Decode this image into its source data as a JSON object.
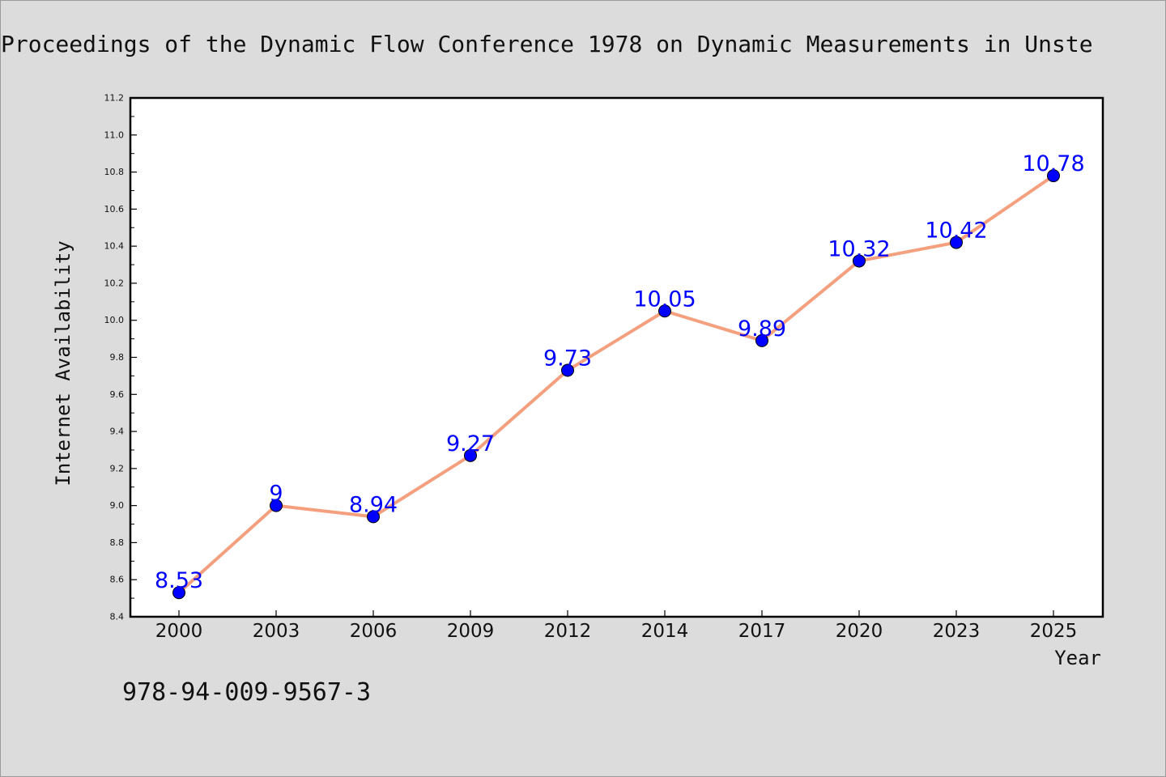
{
  "chart_data": {
    "type": "line",
    "title": "Proceedings of the Dynamic Flow Conference 1978 on Dynamic Measurements in Unste",
    "xlabel": "Year",
    "ylabel": "Internet Availability",
    "categories": [
      "2000",
      "2003",
      "2006",
      "2009",
      "2012",
      "2014",
      "2017",
      "2020",
      "2023",
      "2025"
    ],
    "series": [
      {
        "values": [
          8.53,
          9.0,
          8.94,
          9.27,
          9.73,
          10.05,
          9.89,
          10.32,
          10.42,
          10.78
        ],
        "data_labels": [
          "8.53",
          "9",
          "8.94",
          "9.27",
          "9.73",
          "10.05",
          "9.89",
          "10.32",
          "10.42",
          "10.78"
        ]
      }
    ],
    "ylim": [
      8.4,
      11.2
    ],
    "yticks": [
      "8.4",
      "8.6",
      "8.8",
      "9.0",
      "9.2",
      "9.4",
      "9.6",
      "9.8",
      "10.0",
      "10.2",
      "10.4",
      "10.6",
      "10.8",
      "11.0",
      "11.2"
    ],
    "grid": false,
    "legend": "none",
    "annotation": "978-94-009-9567-3",
    "colors": {
      "background": "#dcdcdc",
      "plot_background": "#ffffff",
      "line": "#f4a07f",
      "marker": "#0000ff",
      "data_label": "#0000ff"
    }
  }
}
